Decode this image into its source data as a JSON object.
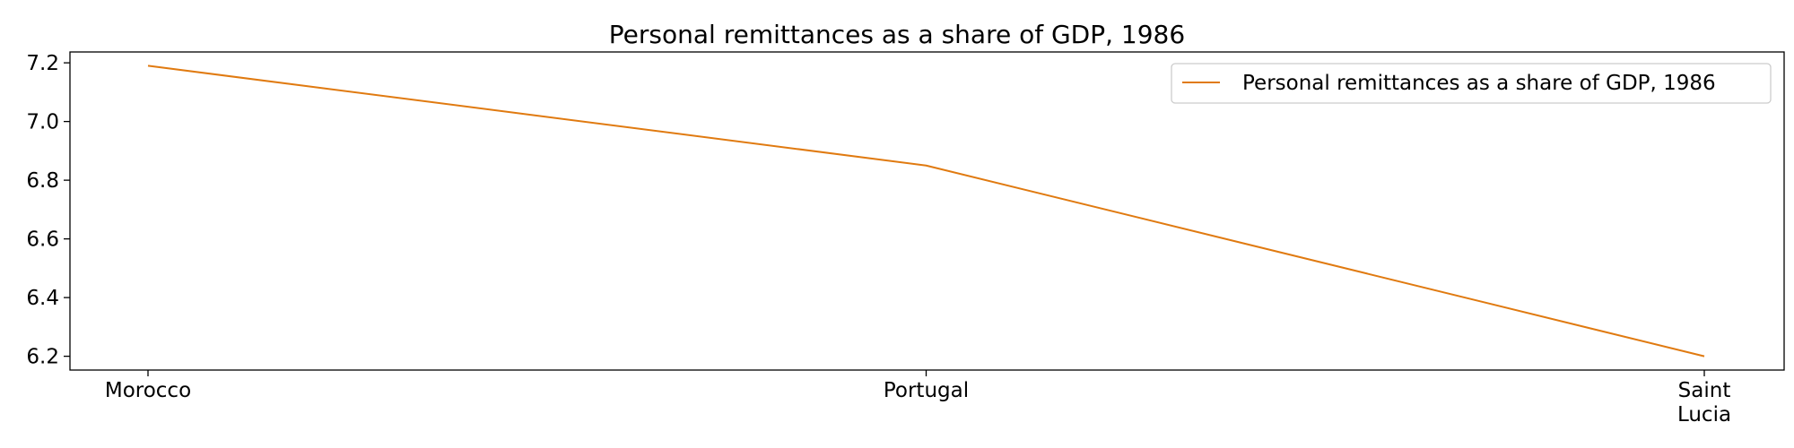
{
  "chart_data": {
    "type": "line",
    "title": "Personal remittances as a share of GDP, 1986",
    "xlabel": "",
    "ylabel": "",
    "categories": [
      "Morocco",
      "Portugal",
      "Saint Lucia"
    ],
    "category_lines": [
      [
        "Morocco"
      ],
      [
        "Portugal"
      ],
      [
        "Saint",
        "Lucia"
      ]
    ],
    "series": [
      {
        "name": "Personal remittances as a share of GDP, 1986",
        "values": [
          7.19,
          6.85,
          6.2
        ],
        "color": "#e07a10"
      }
    ],
    "yticks": [
      "6.2",
      "6.4",
      "6.6",
      "6.8",
      "7.0",
      "7.2"
    ],
    "ylim": [
      6.153,
      7.237
    ],
    "grid": false,
    "legend_position": "top-right"
  }
}
